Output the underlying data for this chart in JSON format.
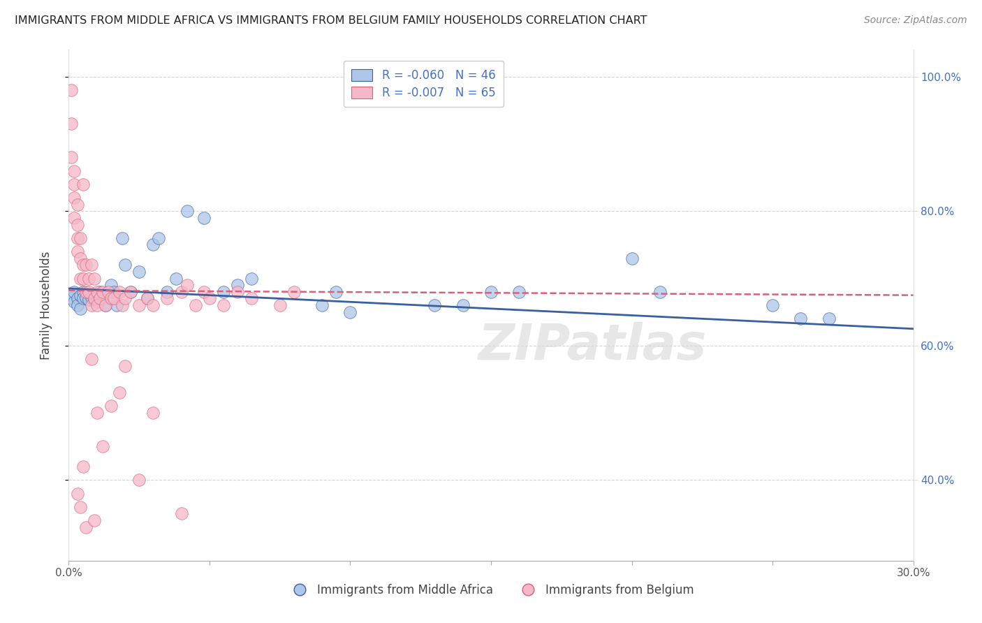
{
  "title": "IMMIGRANTS FROM MIDDLE AFRICA VS IMMIGRANTS FROM BELGIUM FAMILY HOUSEHOLDS CORRELATION CHART",
  "source": "Source: ZipAtlas.com",
  "ylabel": "Family Households",
  "legend_label_blue": "Immigrants from Middle Africa",
  "legend_label_pink": "Immigrants from Belgium",
  "R_blue": -0.06,
  "N_blue": 46,
  "R_pink": -0.007,
  "N_pink": 65,
  "x_min": 0.0,
  "x_max": 0.3,
  "y_min": 0.28,
  "y_max": 1.04,
  "y_ticks": [
    0.4,
    0.6,
    0.8,
    1.0
  ],
  "y_tick_labels": [
    "40.0%",
    "60.0%",
    "80.0%",
    "100.0%"
  ],
  "color_blue": "#aec6e8",
  "color_pink": "#f5b8c8",
  "line_color_blue": "#3a5fa0",
  "line_color_pink": "#d9607a",
  "background_color": "#ffffff",
  "grid_color": "#d0d0d0",
  "watermark": "ZIPatlas",
  "blue_x": [
    0.001,
    0.002,
    0.002,
    0.003,
    0.003,
    0.004,
    0.004,
    0.005,
    0.005,
    0.006,
    0.007,
    0.008,
    0.009,
    0.01,
    0.011,
    0.012,
    0.013,
    0.015,
    0.016,
    0.017,
    0.019,
    0.02,
    0.022,
    0.025,
    0.028,
    0.03,
    0.032,
    0.035,
    0.038,
    0.042,
    0.048,
    0.055,
    0.06,
    0.065,
    0.09,
    0.095,
    0.1,
    0.13,
    0.14,
    0.15,
    0.16,
    0.2,
    0.21,
    0.25,
    0.26,
    0.27
  ],
  "blue_y": [
    0.67,
    0.665,
    0.68,
    0.67,
    0.66,
    0.675,
    0.655,
    0.68,
    0.67,
    0.672,
    0.668,
    0.672,
    0.668,
    0.665,
    0.68,
    0.67,
    0.66,
    0.69,
    0.68,
    0.66,
    0.76,
    0.72,
    0.68,
    0.71,
    0.67,
    0.75,
    0.76,
    0.68,
    0.7,
    0.8,
    0.79,
    0.68,
    0.69,
    0.7,
    0.66,
    0.68,
    0.65,
    0.66,
    0.66,
    0.68,
    0.68,
    0.73,
    0.68,
    0.66,
    0.64,
    0.64
  ],
  "pink_x": [
    0.001,
    0.001,
    0.001,
    0.002,
    0.002,
    0.002,
    0.002,
    0.003,
    0.003,
    0.003,
    0.003,
    0.004,
    0.004,
    0.004,
    0.005,
    0.005,
    0.005,
    0.006,
    0.006,
    0.007,
    0.007,
    0.008,
    0.008,
    0.009,
    0.009,
    0.01,
    0.01,
    0.011,
    0.012,
    0.013,
    0.014,
    0.015,
    0.016,
    0.018,
    0.019,
    0.02,
    0.022,
    0.025,
    0.028,
    0.03,
    0.035,
    0.04,
    0.042,
    0.045,
    0.048,
    0.05,
    0.055,
    0.06,
    0.065,
    0.075,
    0.08,
    0.01,
    0.015,
    0.02,
    0.025,
    0.018,
    0.012,
    0.008,
    0.005,
    0.003,
    0.004,
    0.006,
    0.009,
    0.03,
    0.04
  ],
  "pink_y": [
    0.98,
    0.93,
    0.88,
    0.86,
    0.84,
    0.82,
    0.79,
    0.81,
    0.78,
    0.76,
    0.74,
    0.73,
    0.7,
    0.76,
    0.72,
    0.7,
    0.84,
    0.68,
    0.72,
    0.7,
    0.68,
    0.72,
    0.66,
    0.7,
    0.67,
    0.68,
    0.66,
    0.67,
    0.68,
    0.66,
    0.68,
    0.67,
    0.67,
    0.68,
    0.66,
    0.67,
    0.68,
    0.66,
    0.67,
    0.66,
    0.67,
    0.68,
    0.69,
    0.66,
    0.68,
    0.67,
    0.66,
    0.68,
    0.67,
    0.66,
    0.68,
    0.5,
    0.51,
    0.57,
    0.4,
    0.53,
    0.45,
    0.58,
    0.42,
    0.38,
    0.36,
    0.33,
    0.34,
    0.5,
    0.35
  ],
  "blue_line_y0": 0.685,
  "blue_line_y1": 0.625,
  "pink_line_y0": 0.682,
  "pink_line_y1": 0.675
}
